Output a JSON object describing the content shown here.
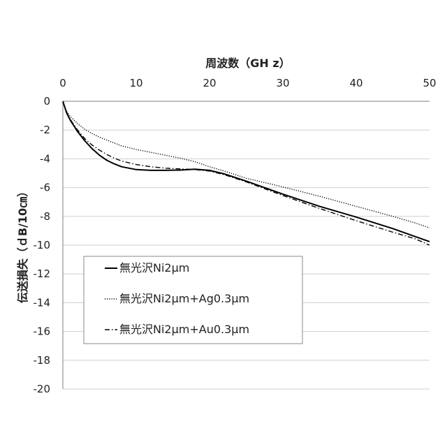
{
  "chart_data": {
    "type": "line",
    "title": "",
    "xlabel": "周波数（GH z）",
    "ylabel": "伝送損失（ｄB/10㎝）",
    "xlim": [
      0,
      50
    ],
    "ylim": [
      -20,
      0
    ],
    "x_ticks": [
      "0",
      "10",
      "20",
      "30",
      "40",
      "50"
    ],
    "y_ticks": [
      "0",
      "-2",
      "-4",
      "-6",
      "-8",
      "-10",
      "-12",
      "-14",
      "-16",
      "-18",
      "-20"
    ],
    "grid": true,
    "x_axis_position": "top",
    "legend_position": "bottom-left",
    "series": [
      {
        "name": "無光沢Ni2μm",
        "style": "solid",
        "color": "#000000",
        "x": [
          0,
          0.5,
          1,
          2,
          3,
          4,
          5,
          6,
          7,
          8,
          10,
          12,
          14,
          16,
          18,
          20,
          22,
          25,
          30,
          35,
          40,
          45,
          48,
          50
        ],
        "y": [
          0,
          -0.8,
          -1.3,
          -2.1,
          -2.75,
          -3.3,
          -3.75,
          -4.1,
          -4.35,
          -4.55,
          -4.75,
          -4.8,
          -4.8,
          -4.78,
          -4.72,
          -4.8,
          -5.05,
          -5.55,
          -6.45,
          -7.3,
          -8.05,
          -8.85,
          -9.4,
          -9.75
        ]
      },
      {
        "name": "無光沢Ni2μm+Ag0.3μm",
        "style": "dotted",
        "color": "#000000",
        "x": [
          0,
          0.5,
          1,
          2,
          3,
          4,
          5,
          6,
          7,
          8,
          10,
          12,
          14,
          16,
          18,
          20,
          22,
          25,
          30,
          35,
          40,
          45,
          48,
          50
        ],
        "y": [
          0,
          -0.7,
          -1.05,
          -1.55,
          -1.95,
          -2.25,
          -2.5,
          -2.7,
          -2.9,
          -3.1,
          -3.35,
          -3.55,
          -3.75,
          -3.95,
          -4.2,
          -4.55,
          -4.85,
          -5.35,
          -5.95,
          -6.6,
          -7.3,
          -8.0,
          -8.45,
          -8.8
        ]
      },
      {
        "name": "無光沢Ni2μm+Au0.3μm",
        "style": "dashdot",
        "color": "#000000",
        "x": [
          0,
          0.5,
          1,
          2,
          3,
          4,
          5,
          6,
          7,
          8,
          10,
          12,
          14,
          16,
          18,
          20,
          22,
          25,
          30,
          35,
          40,
          45,
          48,
          50
        ],
        "y": [
          0,
          -0.75,
          -1.25,
          -2.0,
          -2.6,
          -3.05,
          -3.4,
          -3.7,
          -3.95,
          -4.15,
          -4.4,
          -4.55,
          -4.65,
          -4.7,
          -4.75,
          -4.85,
          -5.1,
          -5.6,
          -6.55,
          -7.45,
          -8.3,
          -9.1,
          -9.55,
          -10.0
        ]
      }
    ]
  },
  "legend": {
    "items": [
      "無光沢Ni2μm",
      "無光沢Ni2μm+Ag0.3μm",
      "無光沢Ni2μm+Au0.3μm"
    ]
  }
}
